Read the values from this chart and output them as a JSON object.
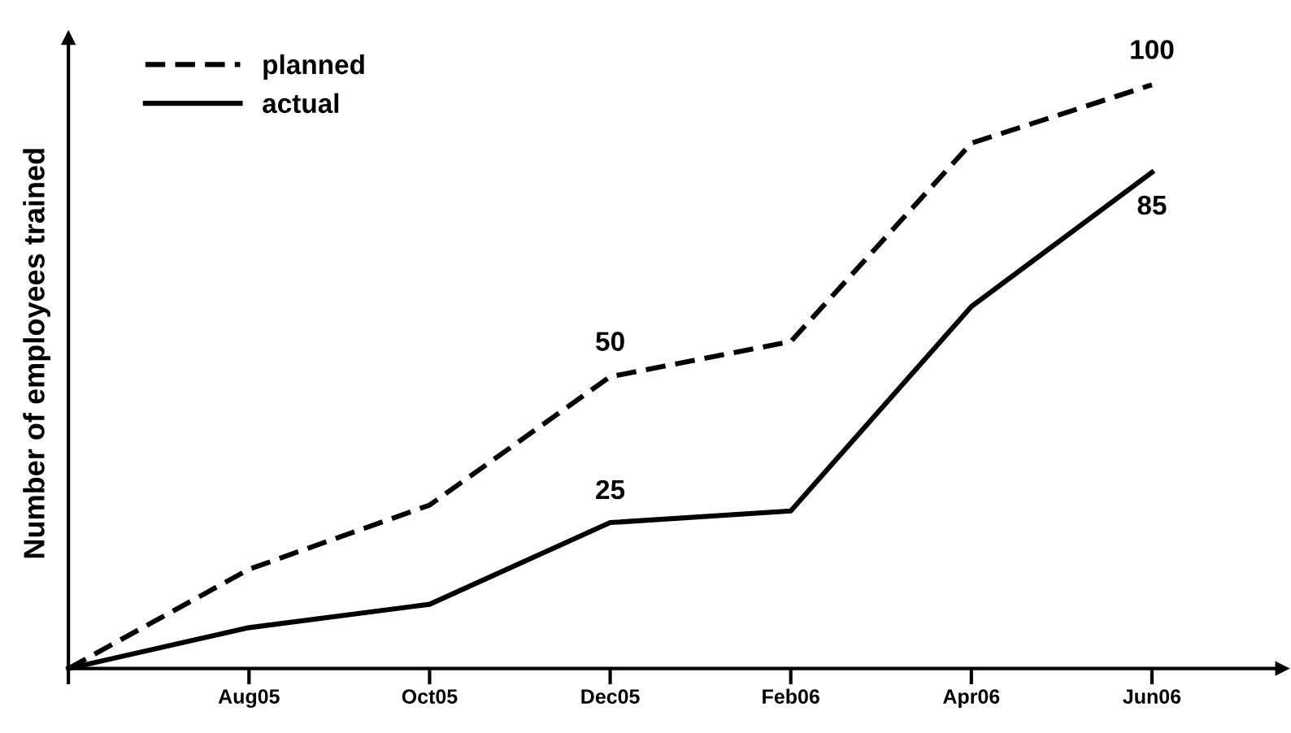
{
  "chart_data": {
    "type": "line",
    "ylabel": "Number of employees trained",
    "ylim": [
      0,
      108
    ],
    "categories": [
      null,
      "Aug05",
      "Oct05",
      "Dec05",
      "Feb06",
      "Apr06",
      "Jun06"
    ],
    "series": [
      {
        "name": "planned",
        "color": "#000000",
        "line_style": "dashed",
        "values": [
          0,
          17,
          28,
          50,
          56,
          90,
          100
        ],
        "value_labels": [
          null,
          null,
          null,
          "50",
          null,
          null,
          "100"
        ]
      },
      {
        "name": "actual",
        "color": "#000000",
        "line_style": "solid",
        "values": [
          0,
          7,
          11,
          25,
          27,
          62,
          85
        ],
        "value_labels": [
          null,
          null,
          null,
          "25",
          null,
          null,
          "85"
        ]
      }
    ],
    "legend": "top left",
    "grid": false,
    "marker": "none"
  }
}
